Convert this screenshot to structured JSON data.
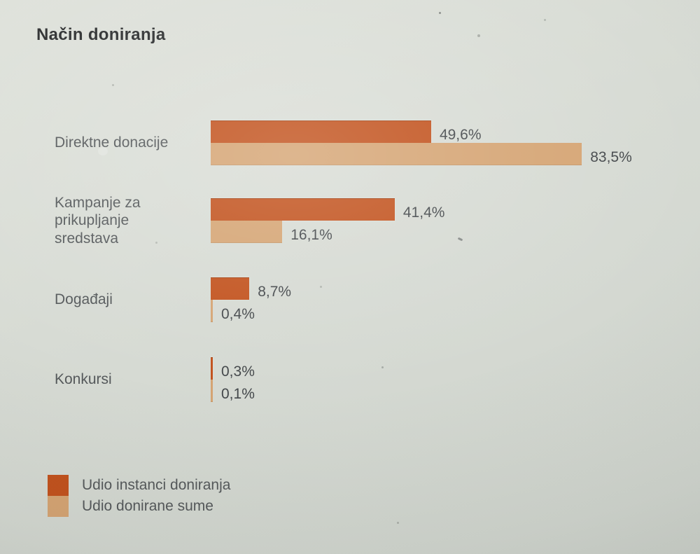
{
  "title": "Način doniranja",
  "chart_data": {
    "type": "bar",
    "orientation": "horizontal",
    "title": "Način doniranja",
    "categories": [
      "Direktne donacije",
      "Kampanje za\nprikupljanje\nsredstava",
      "Događaji",
      "Konkursi"
    ],
    "series": [
      {
        "name": "Udio instanci doniranja",
        "color": "#c2521d",
        "values": [
          49.6,
          41.4,
          8.7,
          0.3
        ],
        "value_labels": [
          "49,6%",
          "41,4%",
          "8,7%",
          "0,3%"
        ]
      },
      {
        "name": "Udio donirane sume",
        "color": "#d5a473",
        "values": [
          83.5,
          16.1,
          0.4,
          0.1
        ],
        "value_labels": [
          "83,5%",
          "16,1%",
          "0,4%",
          "0,1%"
        ]
      }
    ],
    "xlim": [
      0,
      100
    ],
    "value_suffix": "%",
    "decimal_separator": ",",
    "grid": false,
    "axis_visible": false,
    "legend_position": "bottom-left",
    "colors": {
      "background": "#d7dbd4",
      "title_text": "#2d2f30",
      "category_text": "#55595b",
      "value_text": "#43474a"
    }
  }
}
